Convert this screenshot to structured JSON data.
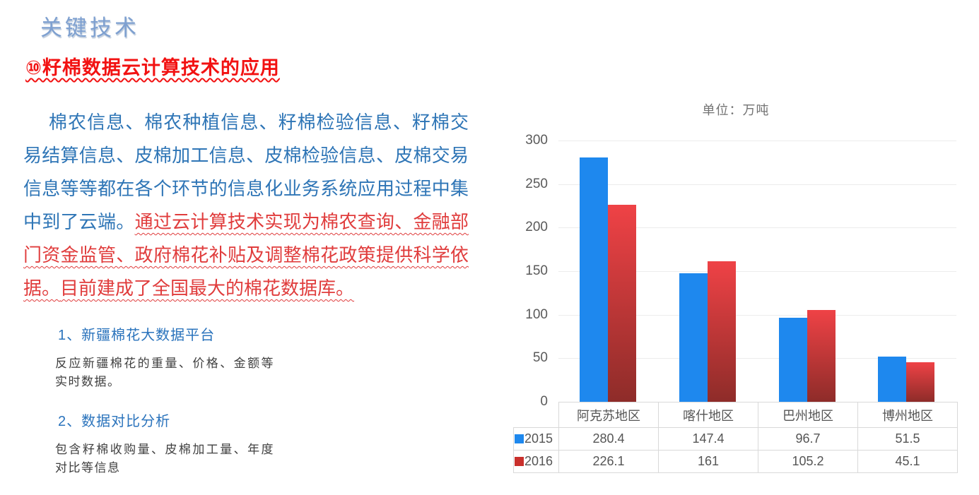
{
  "page": {
    "title": "关键技术",
    "heading": "⑩籽棉数据云计算技术的应用",
    "paragraph": {
      "blue_part": "棉农信息、棉农种植信息、籽棉检验信息、籽棉交易结算信息、皮棉加工信息、皮棉检验信息、皮棉交易信息等等都在各个环节的信息化业务系统应用过程中集中到了云端。",
      "red_part": "通过云计算技术实现为棉农查询、金融部门资金监管、政府棉花补贴及调整棉花政策提供科学依据。",
      "red_part2": "目前建成了全国最大的棉花数据库。"
    },
    "sections": [
      {
        "heading": "1、新疆棉花大数据平台",
        "body": "反应新疆棉花的重量、价格、金额等实时数据。"
      },
      {
        "heading": "2、数据对比分析",
        "body": "包含籽棉收购量、皮棉加工量、年度对比等信息"
      }
    ]
  },
  "chart_data": {
    "type": "bar",
    "title": "单位：万吨",
    "categories": [
      "阿克苏地区",
      "喀什地区",
      "巴州地区",
      "博州地区"
    ],
    "series": [
      {
        "name": "2015",
        "values": [
          280.4,
          147.4,
          96.7,
          51.5
        ],
        "color": "#1E88EE",
        "legend_color": "#1E88EE"
      },
      {
        "name": "2016",
        "values": [
          226.1,
          161,
          105.2,
          45.1
        ],
        "color": "#E8403F",
        "gradient": [
          "#EF4246",
          "#8E2C29"
        ],
        "legend_color": "#C9302C"
      }
    ],
    "ylim": [
      0,
      300
    ],
    "yticks": [
      0,
      50,
      100,
      150,
      200,
      250,
      300
    ],
    "grid": true,
    "legend_position": "table-left",
    "xlabel": "",
    "ylabel": ""
  }
}
